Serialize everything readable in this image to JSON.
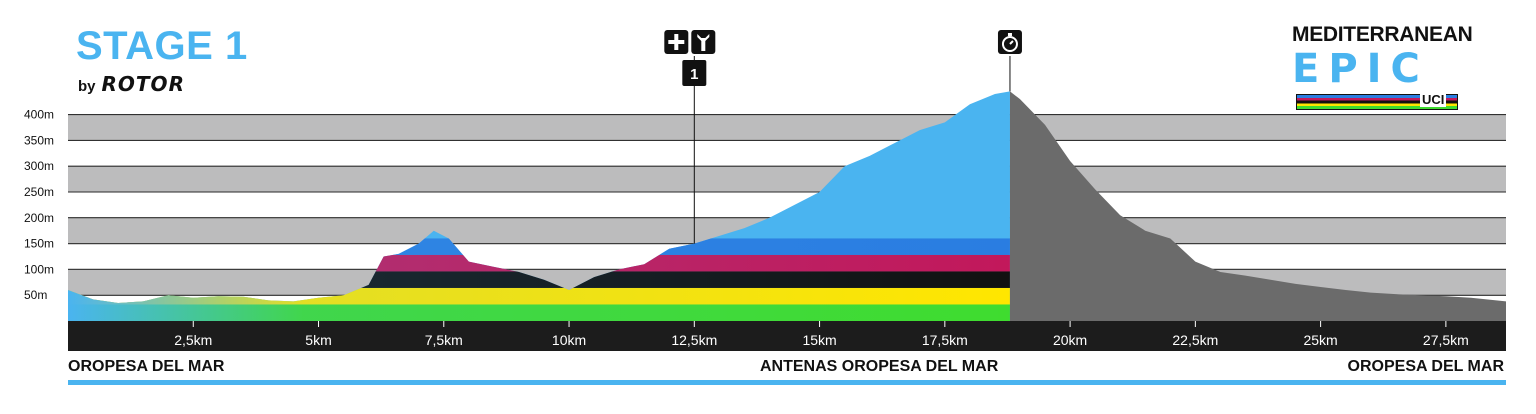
{
  "header": {
    "title": "STAGE 1",
    "by": "by",
    "sponsor": "ROTOR"
  },
  "logo": {
    "line1": "MEDITERRANEAN",
    "line2": "EPIC",
    "badge": "UCI"
  },
  "colors": {
    "ascent": "#4ab4f0",
    "descent": "#6b6b6b",
    "axis_bar": "#1c1c1c",
    "grid_band": "#bcbcbd",
    "accent_line": "#4ab4f0"
  },
  "markers": [
    {
      "name": "feed-zone",
      "icons": [
        "first-aid-icon",
        "wrench-icon"
      ],
      "label": "1",
      "x_km": 12.5
    },
    {
      "name": "timed-climb",
      "icons": [
        "stopwatch-icon"
      ],
      "label": "",
      "x_km": 18.8
    }
  ],
  "places": {
    "start": "OROPESA DEL MAR",
    "middle": "ANTENAS OROPESA DEL MAR",
    "end": "OROPESA DEL MAR"
  },
  "chart_data": {
    "type": "area",
    "title": "STAGE 1",
    "xlabel": "",
    "ylabel": "",
    "x_unit": "km",
    "y_unit": "m",
    "xlim": [
      0,
      28.7
    ],
    "ylim": [
      0,
      450
    ],
    "x_ticks": [
      2.5,
      5,
      7.5,
      10,
      12.5,
      15,
      17.5,
      20,
      22.5,
      25,
      27.5
    ],
    "x_tick_labels": [
      "2,5km",
      "5km",
      "7,5km",
      "10km",
      "12,5km",
      "15km",
      "17,5km",
      "20km",
      "22,5km",
      "25km",
      "27,5km"
    ],
    "y_ticks": [
      50,
      100,
      150,
      200,
      250,
      300,
      350,
      400
    ],
    "y_tick_labels": [
      "50m",
      "100m",
      "150m",
      "200m",
      "250m",
      "300m",
      "350m",
      "400m"
    ],
    "grid": true,
    "summit_km": 18.8,
    "series": [
      {
        "x": [
          0,
          0.5,
          1,
          1.5,
          2,
          2.5,
          3,
          3.5,
          4,
          4.5,
          5,
          5.5,
          6,
          6.3,
          6.6,
          7,
          7.3,
          7.6,
          8,
          8.5,
          9,
          9.5,
          10,
          10.5,
          11,
          11.5,
          12,
          12.5,
          13,
          13.5,
          14,
          14.5,
          15,
          15.5,
          16,
          16.5,
          17,
          17.5,
          18,
          18.5,
          18.8,
          19,
          19.5,
          20,
          20.5,
          21,
          21.5,
          22,
          22.5,
          23,
          23.5,
          24,
          24.5,
          25,
          25.5,
          26,
          26.5,
          27,
          27.5,
          28,
          28.7
        ],
        "y": [
          60,
          42,
          35,
          38,
          50,
          45,
          48,
          47,
          40,
          38,
          45,
          50,
          70,
          125,
          130,
          150,
          175,
          160,
          115,
          105,
          95,
          80,
          60,
          85,
          100,
          110,
          140,
          150,
          165,
          180,
          200,
          225,
          250,
          300,
          320,
          345,
          370,
          385,
          420,
          440,
          445,
          430,
          380,
          310,
          255,
          205,
          175,
          160,
          115,
          95,
          88,
          80,
          72,
          66,
          60,
          55,
          52,
          50,
          48,
          45,
          38
        ]
      }
    ]
  }
}
